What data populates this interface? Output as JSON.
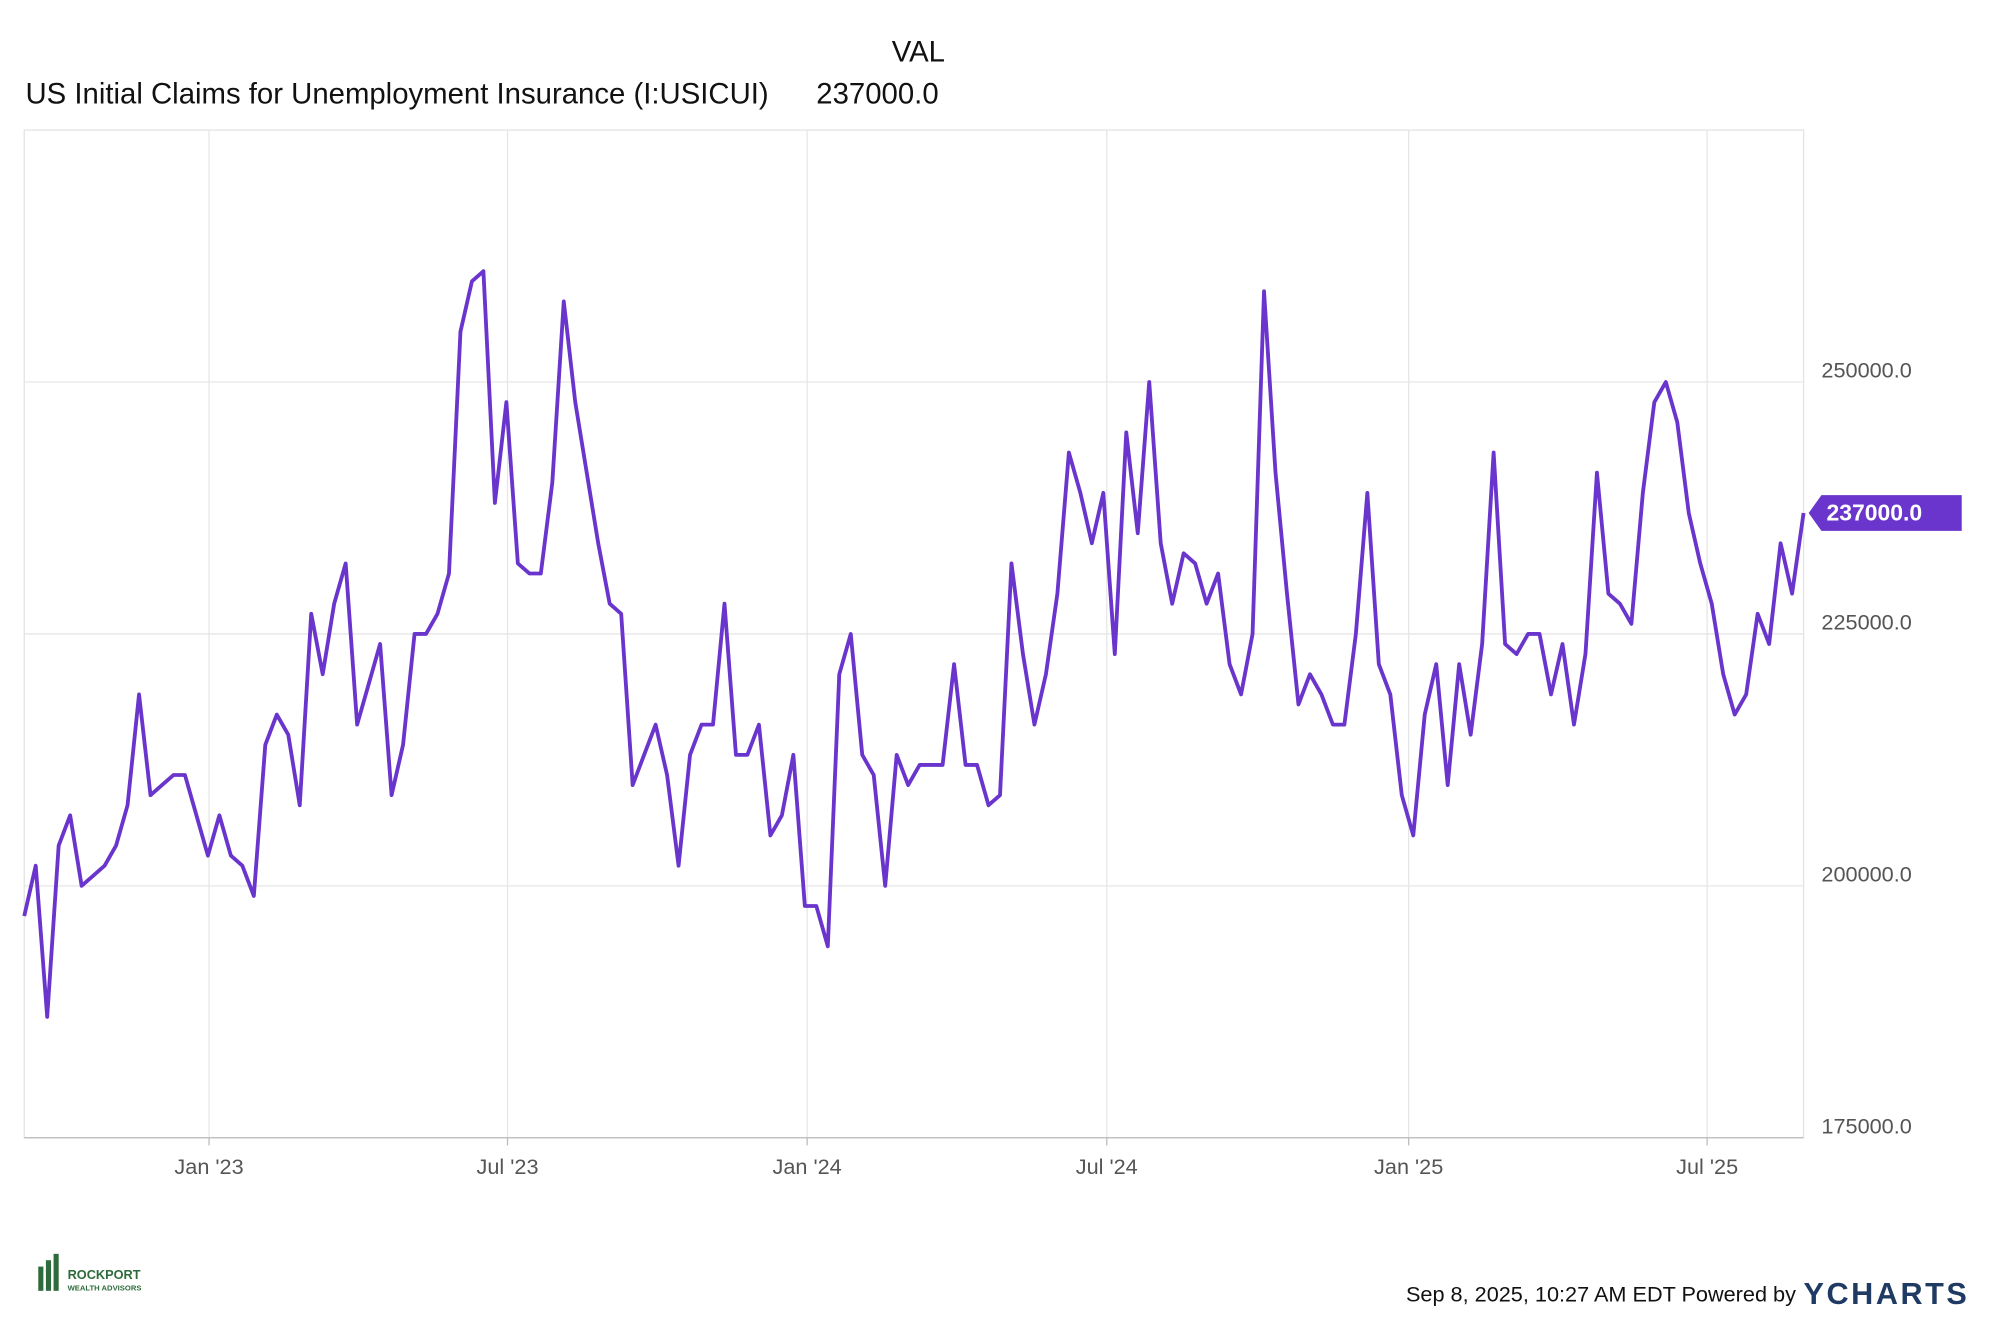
{
  "chart_data": {
    "type": "line",
    "legend_title": "VAL",
    "title": "US Initial Claims for Unemployment Insurance (I:USICUI)",
    "current_value_label": "237000.0",
    "series": [
      {
        "name": "US Initial Claims for Unemployment Insurance (I:USICUI)",
        "color": "#6a35cc",
        "values": [
          197000,
          202000,
          187000,
          204000,
          207000,
          200000,
          201000,
          202000,
          204000,
          208000,
          219000,
          209000,
          210000,
          211000,
          211000,
          207000,
          203000,
          207000,
          203000,
          202000,
          199000,
          214000,
          217000,
          215000,
          208000,
          227000,
          221000,
          228000,
          232000,
          216000,
          220000,
          224000,
          209000,
          214000,
          225000,
          225000,
          227000,
          231000,
          255000,
          260000,
          261000,
          238000,
          248000,
          232000,
          231000,
          231000,
          240000,
          258000,
          248000,
          241000,
          234000,
          228000,
          227000,
          210000,
          213000,
          216000,
          211000,
          202000,
          213000,
          216000,
          216000,
          228000,
          213000,
          213000,
          216000,
          205000,
          207000,
          213000,
          198000,
          198000,
          194000,
          221000,
          225000,
          213000,
          211000,
          200000,
          213000,
          210000,
          212000,
          212000,
          212000,
          222000,
          212000,
          212000,
          208000,
          209000,
          232000,
          223000,
          216000,
          221000,
          229000,
          243000,
          239000,
          234000,
          239000,
          223000,
          245000,
          235000,
          250000,
          234000,
          228000,
          233000,
          232000,
          228000,
          231000,
          222000,
          219000,
          225000,
          259000,
          241000,
          229000,
          218000,
          221000,
          219000,
          216000,
          216000,
          225000,
          239000,
          222000,
          219000,
          209000,
          205000,
          217000,
          222000,
          210000,
          222000,
          215000,
          224000,
          243000,
          224000,
          223000,
          225000,
          225000,
          219000,
          224000,
          216000,
          223000,
          241000,
          229000,
          228000,
          226000,
          239000,
          248000,
          250000,
          246000,
          237000,
          232000,
          228000,
          221000,
          217000,
          219000,
          227000,
          224000,
          234000,
          229000,
          237000
        ]
      }
    ],
    "xlim": [
      0,
      155
    ],
    "xticks": [
      {
        "value": 16.1,
        "label": "Jan '23"
      },
      {
        "value": 42.1,
        "label": "Jul '23"
      },
      {
        "value": 68.2,
        "label": "Jan '24"
      },
      {
        "value": 94.3,
        "label": "Jul '24"
      },
      {
        "value": 120.6,
        "label": "Jan '25"
      },
      {
        "value": 146.6,
        "label": "Jul '25"
      }
    ],
    "ylim": [
      175000,
      275000
    ],
    "yticks": [
      {
        "value": 175000,
        "label": "175000.0"
      },
      {
        "value": 200000,
        "label": "200000.0"
      },
      {
        "value": 225000,
        "label": "225000.0"
      },
      {
        "value": 250000,
        "label": "250000.0"
      }
    ],
    "grid": true
  },
  "footer": {
    "timestamp": "Sep 8, 2025, 10:27 AM EDT Powered by",
    "brand": "YCHARTS",
    "logo_name": "ROCKPORT",
    "logo_sub": "WEALTH ADVISORS"
  }
}
